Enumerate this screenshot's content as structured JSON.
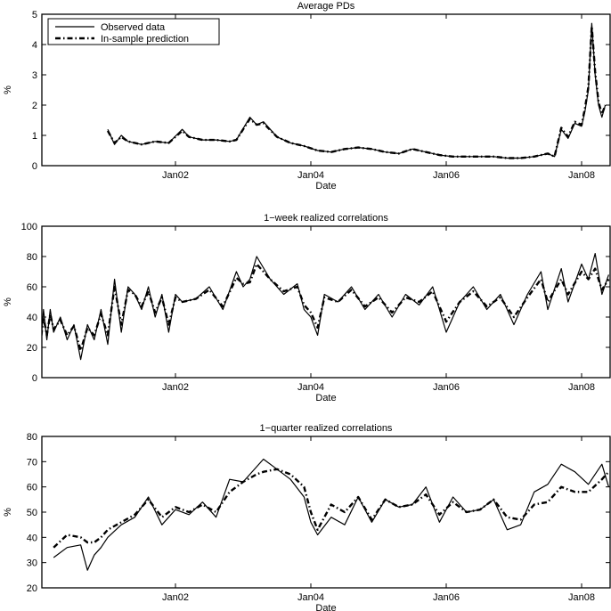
{
  "chart_data": [
    {
      "type": "line",
      "title": "Average PDs",
      "xlabel": "Date",
      "ylabel": "%",
      "ylim": [
        0,
        5
      ],
      "yticks": [
        "0",
        "1",
        "2",
        "3",
        "4",
        "5"
      ],
      "xticks": [
        "Jan02",
        "Jan04",
        "Jan06",
        "Jan08"
      ],
      "legend": {
        "position": "upper left",
        "entries": [
          "Observed data",
          "In-sample prediction"
        ]
      },
      "x": [
        2001.0,
        2001.1,
        2001.2,
        2001.3,
        2001.5,
        2001.7,
        2001.9,
        2002.1,
        2002.2,
        2002.4,
        2002.6,
        2002.8,
        2002.9,
        2003.1,
        2003.2,
        2003.3,
        2003.5,
        2003.7,
        2003.9,
        2004.1,
        2004.3,
        2004.5,
        2004.7,
        2004.9,
        2005.1,
        2005.3,
        2005.5,
        2005.7,
        2005.9,
        2006.1,
        2006.3,
        2006.5,
        2006.7,
        2006.9,
        2007.1,
        2007.3,
        2007.5,
        2007.6,
        2007.7,
        2007.8,
        2007.9,
        2008.0,
        2008.05,
        2008.1,
        2008.15,
        2008.2,
        2008.25,
        2008.3,
        2008.35
      ],
      "series": [
        {
          "name": "Observed data",
          "values": [
            1.2,
            0.7,
            1.0,
            0.8,
            0.7,
            0.8,
            0.75,
            1.2,
            0.95,
            0.85,
            0.85,
            0.8,
            0.85,
            1.6,
            1.35,
            1.45,
            0.95,
            0.75,
            0.65,
            0.5,
            0.45,
            0.55,
            0.6,
            0.55,
            0.45,
            0.4,
            0.55,
            0.45,
            0.35,
            0.3,
            0.3,
            0.3,
            0.3,
            0.25,
            0.25,
            0.3,
            0.4,
            0.3,
            1.2,
            0.9,
            1.4,
            1.3,
            1.8,
            2.5,
            4.7,
            3.0,
            2.0,
            1.6,
            2.0
          ]
        },
        {
          "name": "In-sample prediction",
          "values": [
            1.15,
            0.75,
            0.95,
            0.8,
            0.7,
            0.8,
            0.75,
            1.15,
            0.95,
            0.85,
            0.85,
            0.8,
            0.85,
            1.55,
            1.35,
            1.4,
            0.95,
            0.75,
            0.65,
            0.5,
            0.45,
            0.55,
            0.6,
            0.55,
            0.45,
            0.4,
            0.55,
            0.45,
            0.35,
            0.3,
            0.3,
            0.3,
            0.3,
            0.25,
            0.25,
            0.3,
            0.4,
            0.3,
            1.25,
            0.95,
            1.45,
            1.35,
            1.9,
            2.6,
            4.6,
            3.1,
            2.1,
            1.7,
            2.0
          ]
        }
      ]
    },
    {
      "type": "line",
      "title": "1−week realized correlations",
      "xlabel": "Date",
      "ylabel": "%",
      "ylim": [
        0,
        100
      ],
      "yticks": [
        "0",
        "20",
        "40",
        "60",
        "80",
        "100"
      ],
      "xticks": [
        "Jan02",
        "Jan04",
        "Jan06",
        "Jan08"
      ],
      "x": [
        2000.0,
        2000.05,
        2000.1,
        2000.15,
        2000.2,
        2000.3,
        2000.4,
        2000.5,
        2000.6,
        2000.7,
        2000.8,
        2000.9,
        2001.0,
        2001.1,
        2001.2,
        2001.3,
        2001.4,
        2001.5,
        2001.6,
        2001.7,
        2001.8,
        2001.9,
        2002.0,
        2002.1,
        2002.3,
        2002.5,
        2002.7,
        2002.9,
        2003.0,
        2003.1,
        2003.2,
        2003.4,
        2003.6,
        2003.8,
        2003.9,
        2004.0,
        2004.1,
        2004.2,
        2004.4,
        2004.6,
        2004.8,
        2005.0,
        2005.2,
        2005.4,
        2005.6,
        2005.8,
        2006.0,
        2006.2,
        2006.4,
        2006.6,
        2006.8,
        2007.0,
        2007.2,
        2007.4,
        2007.5,
        2007.7,
        2007.8,
        2008.0,
        2008.1,
        2008.2,
        2008.3,
        2008.4
      ],
      "series": [
        {
          "name": "Observed data",
          "values": [
            16,
            45,
            25,
            45,
            30,
            40,
            25,
            35,
            12,
            35,
            25,
            45,
            22,
            65,
            30,
            60,
            55,
            45,
            60,
            40,
            55,
            30,
            55,
            50,
            52,
            60,
            45,
            70,
            60,
            65,
            80,
            65,
            55,
            62,
            45,
            40,
            28,
            55,
            50,
            60,
            45,
            55,
            40,
            55,
            48,
            60,
            30,
            50,
            60,
            45,
            55,
            35,
            55,
            70,
            45,
            72,
            50,
            75,
            65,
            82,
            55,
            68
          ]
        },
        {
          "name": "In-sample prediction",
          "values": [
            20,
            40,
            28,
            42,
            32,
            38,
            28,
            34,
            18,
            33,
            28,
            42,
            28,
            60,
            35,
            58,
            55,
            47,
            57,
            43,
            53,
            35,
            53,
            50,
            52,
            58,
            47,
            66,
            62,
            63,
            75,
            65,
            57,
            60,
            48,
            43,
            33,
            53,
            50,
            58,
            47,
            53,
            43,
            53,
            50,
            57,
            37,
            50,
            57,
            47,
            53,
            40,
            53,
            65,
            50,
            65,
            55,
            70,
            65,
            72,
            58,
            65
          ]
        }
      ]
    },
    {
      "type": "line",
      "title": "1−quarter realized correlations",
      "xlabel": "Date",
      "ylabel": "%",
      "ylim": [
        20,
        80
      ],
      "yticks": [
        "20",
        "30",
        "40",
        "50",
        "60",
        "70",
        "80"
      ],
      "xticks": [
        "Jan02",
        "Jan04",
        "Jan06",
        "Jan08"
      ],
      "x": [
        2000.2,
        2000.4,
        2000.6,
        2000.7,
        2000.8,
        2000.9,
        2001.0,
        2001.2,
        2001.4,
        2001.6,
        2001.8,
        2002.0,
        2002.2,
        2002.4,
        2002.6,
        2002.8,
        2003.0,
        2003.2,
        2003.3,
        2003.5,
        2003.7,
        2003.9,
        2004.0,
        2004.1,
        2004.3,
        2004.5,
        2004.7,
        2004.9,
        2005.1,
        2005.3,
        2005.5,
        2005.7,
        2005.9,
        2006.1,
        2006.3,
        2006.5,
        2006.7,
        2006.9,
        2007.1,
        2007.3,
        2007.5,
        2007.7,
        2007.9,
        2008.1,
        2008.3,
        2008.4
      ],
      "series": [
        {
          "name": "Observed data",
          "values": [
            32,
            36,
            37,
            27,
            33,
            36,
            40,
            45,
            48,
            56,
            45,
            51,
            49,
            54,
            48,
            63,
            62,
            68,
            71,
            67,
            63,
            56,
            46,
            41,
            48,
            45,
            56,
            46,
            55,
            52,
            53,
            60,
            46,
            56,
            50,
            51,
            55,
            43,
            45,
            58,
            61,
            69,
            66,
            61,
            69,
            60
          ]
        },
        {
          "name": "In-sample prediction",
          "values": [
            36,
            41,
            40,
            38,
            38,
            40,
            43,
            46,
            49,
            55,
            48,
            52,
            50,
            53,
            50,
            58,
            62,
            65,
            66,
            67,
            65,
            60,
            50,
            43,
            53,
            50,
            56,
            47,
            55,
            52,
            53,
            57,
            49,
            54,
            50,
            51,
            55,
            48,
            47,
            53,
            54,
            60,
            58,
            58,
            63,
            66
          ]
        }
      ]
    }
  ],
  "panels": [
    {
      "title": "Average PDs",
      "xlabel": "Date",
      "ylabel": "%",
      "yticks": [
        "0",
        "1",
        "2",
        "3",
        "4",
        "5"
      ],
      "xticks": [
        "Jan02",
        "Jan04",
        "Jan06",
        "Jan08"
      ]
    },
    {
      "title": "1−week realized correlations",
      "xlabel": "Date",
      "ylabel": "%",
      "yticks": [
        "0",
        "20",
        "40",
        "60",
        "80",
        "100"
      ],
      "xticks": [
        "Jan02",
        "Jan04",
        "Jan06",
        "Jan08"
      ]
    },
    {
      "title": "1−quarter realized correlations",
      "xlabel": "Date",
      "ylabel": "%",
      "yticks": [
        "20",
        "30",
        "40",
        "50",
        "60",
        "70",
        "80"
      ],
      "xticks": [
        "Jan02",
        "Jan04",
        "Jan06",
        "Jan08"
      ]
    }
  ],
  "legend": {
    "observed": "Observed data",
    "predicted": "In-sample prediction"
  }
}
